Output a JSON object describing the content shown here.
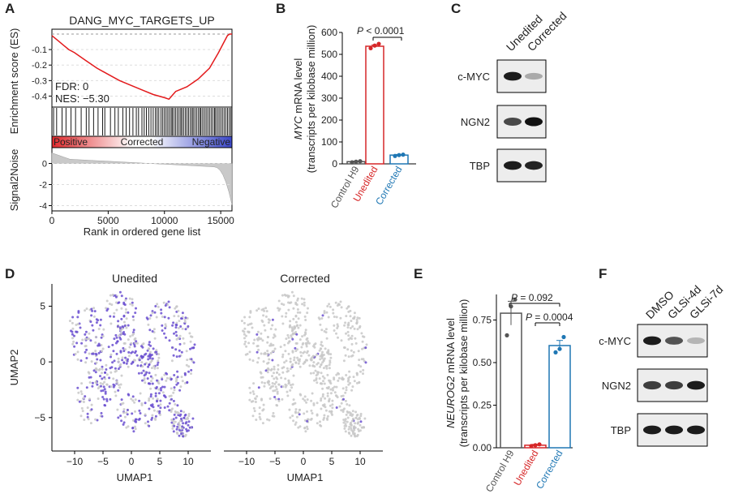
{
  "panels": {
    "A": "A",
    "B": "B",
    "C": "C",
    "D": "D",
    "E": "E",
    "F": "F"
  },
  "colors": {
    "control": "#555555",
    "unedited": "#d62728",
    "corrected": "#1f77b4",
    "umap_gray": "#c8c8c8",
    "umap_purple": "#6a4fd0",
    "band": "#111111"
  },
  "chart_data": [
    {
      "id": "A",
      "type": "line",
      "title": "DANG_MYC_TARGETS_UP",
      "xlabel": "Rank in ordered gene list",
      "ylabel_top": "Enrichment score (ES)",
      "ylabel_bottom": "Signal2Noise",
      "xlim": [
        0,
        16000
      ],
      "xticks": [
        "0",
        "5000",
        "10000",
        "15000"
      ],
      "es_ylim": [
        -0.45,
        0.02
      ],
      "es_yticks": [
        "-0.1",
        "-0.2",
        "-0.3",
        "-0.4"
      ],
      "snr_ylim": [
        -4.5,
        1.5
      ],
      "snr_yticks": [
        "0",
        "-2",
        "-4"
      ],
      "annotations": {
        "fdr": "FDR: 0",
        "nes": "NES: −5.30"
      },
      "bar_labels": {
        "left": "Positive",
        "mid": "Corrected",
        "right": "Negative"
      },
      "es_curve": {
        "x": [
          0,
          500,
          1000,
          1500,
          2000,
          3000,
          4000,
          5000,
          6000,
          7000,
          8000,
          9000,
          10000,
          10400,
          11000,
          12000,
          13000,
          14000,
          14800,
          15300,
          15600,
          15800,
          16000
        ],
        "y": [
          -0.01,
          -0.04,
          -0.07,
          -0.1,
          -0.12,
          -0.17,
          -0.22,
          -0.26,
          -0.3,
          -0.33,
          -0.36,
          -0.39,
          -0.41,
          -0.42,
          -0.37,
          -0.34,
          -0.29,
          -0.22,
          -0.12,
          -0.05,
          -0.01,
          0.0,
          0.0
        ]
      },
      "hit_positions": [
        150,
        420,
        900,
        1250,
        1700,
        2100,
        2600,
        3050,
        3300,
        3700,
        4100,
        4500,
        4700,
        5200,
        5600,
        5900,
        6300,
        6600,
        6900,
        7200,
        7500,
        7700,
        8000,
        8200,
        8400,
        8600,
        8800,
        9000,
        9200,
        9350,
        9500,
        9700,
        9850,
        10000,
        10150,
        10300,
        10450,
        10600,
        10700,
        10850,
        11000,
        11150,
        11300,
        11450,
        11550,
        11700,
        11850,
        12000,
        12150,
        12300,
        12450,
        12550,
        12700,
        12850,
        13000,
        13150,
        13250,
        13400,
        13550,
        13700,
        13850,
        14000,
        14150,
        14300,
        14450,
        14550,
        14700,
        14850,
        15000,
        15150,
        15300,
        15450,
        15600,
        15750,
        15900
      ]
    },
    {
      "id": "B",
      "type": "bar",
      "ylabel_italic": "MYC",
      "ylabel_rest": " mRNA level",
      "ylabel_line2": "(transcripts per kilobase million)",
      "categories": [
        "Control H9",
        "Unedited",
        "Corrected"
      ],
      "values": [
        10,
        537,
        40
      ],
      "errors": [
        3,
        6,
        3
      ],
      "points": [
        [
          7,
          10,
          12
        ],
        [
          528,
          540,
          548
        ],
        [
          36,
          40,
          42
        ]
      ],
      "ylim": [
        0,
        600
      ],
      "yticks": [
        "0",
        "100",
        "200",
        "300",
        "400",
        "500",
        "600"
      ],
      "pvalue_italic": "P",
      "pvalue_rest": " < 0.0001"
    },
    {
      "id": "C",
      "type": "table",
      "columns": [
        "Unedited",
        "Corrected"
      ],
      "rows": [
        "c-MYC",
        "NGN2",
        "TBP"
      ],
      "intensities": [
        [
          0.95,
          0.3
        ],
        [
          0.75,
          1.0
        ],
        [
          0.95,
          0.92
        ]
      ]
    },
    {
      "id": "D",
      "type": "scatter",
      "titles": [
        "Unedited",
        "Corrected"
      ],
      "xlabel": "UMAP1",
      "ylabel": "UMAP2",
      "xticks": [
        "−10",
        "−5",
        "0",
        "5",
        "10"
      ],
      "yticks": [
        "5",
        "0",
        "−5"
      ],
      "xlim": [
        -14,
        14
      ],
      "ylim": [
        -8,
        7
      ]
    },
    {
      "id": "E",
      "type": "bar",
      "ylabel_italic": "NEUROG2",
      "ylabel_rest": " mRNA level",
      "ylabel_line2": "(transcripts per kilobase million)",
      "categories": [
        "Control H9",
        "Unedited",
        "Corrected"
      ],
      "values": [
        0.79,
        0.015,
        0.6
      ],
      "errors": [
        0.07,
        0.005,
        0.03
      ],
      "points": [
        [
          0.66,
          0.83,
          0.87
        ],
        [
          0.01,
          0.015,
          0.02
        ],
        [
          0.56,
          0.58,
          0.65
        ]
      ],
      "ylim": [
        0,
        0.9
      ],
      "yticks": [
        "0.00",
        "0.25",
        "0.50",
        "0.75"
      ],
      "pvalue1_italic": "P",
      "pvalue1_rest": " = 0.092",
      "pvalue2_italic": "P",
      "pvalue2_rest": " = 0.0004"
    },
    {
      "id": "F",
      "type": "table",
      "columns": [
        "DMSO",
        "GLSi-4d",
        "GLSi-7d"
      ],
      "rows": [
        "c-MYC",
        "NGN2",
        "TBP"
      ],
      "intensities": [
        [
          0.95,
          0.7,
          0.25
        ],
        [
          0.8,
          0.8,
          0.95
        ],
        [
          0.95,
          0.95,
          0.95
        ]
      ]
    }
  ]
}
